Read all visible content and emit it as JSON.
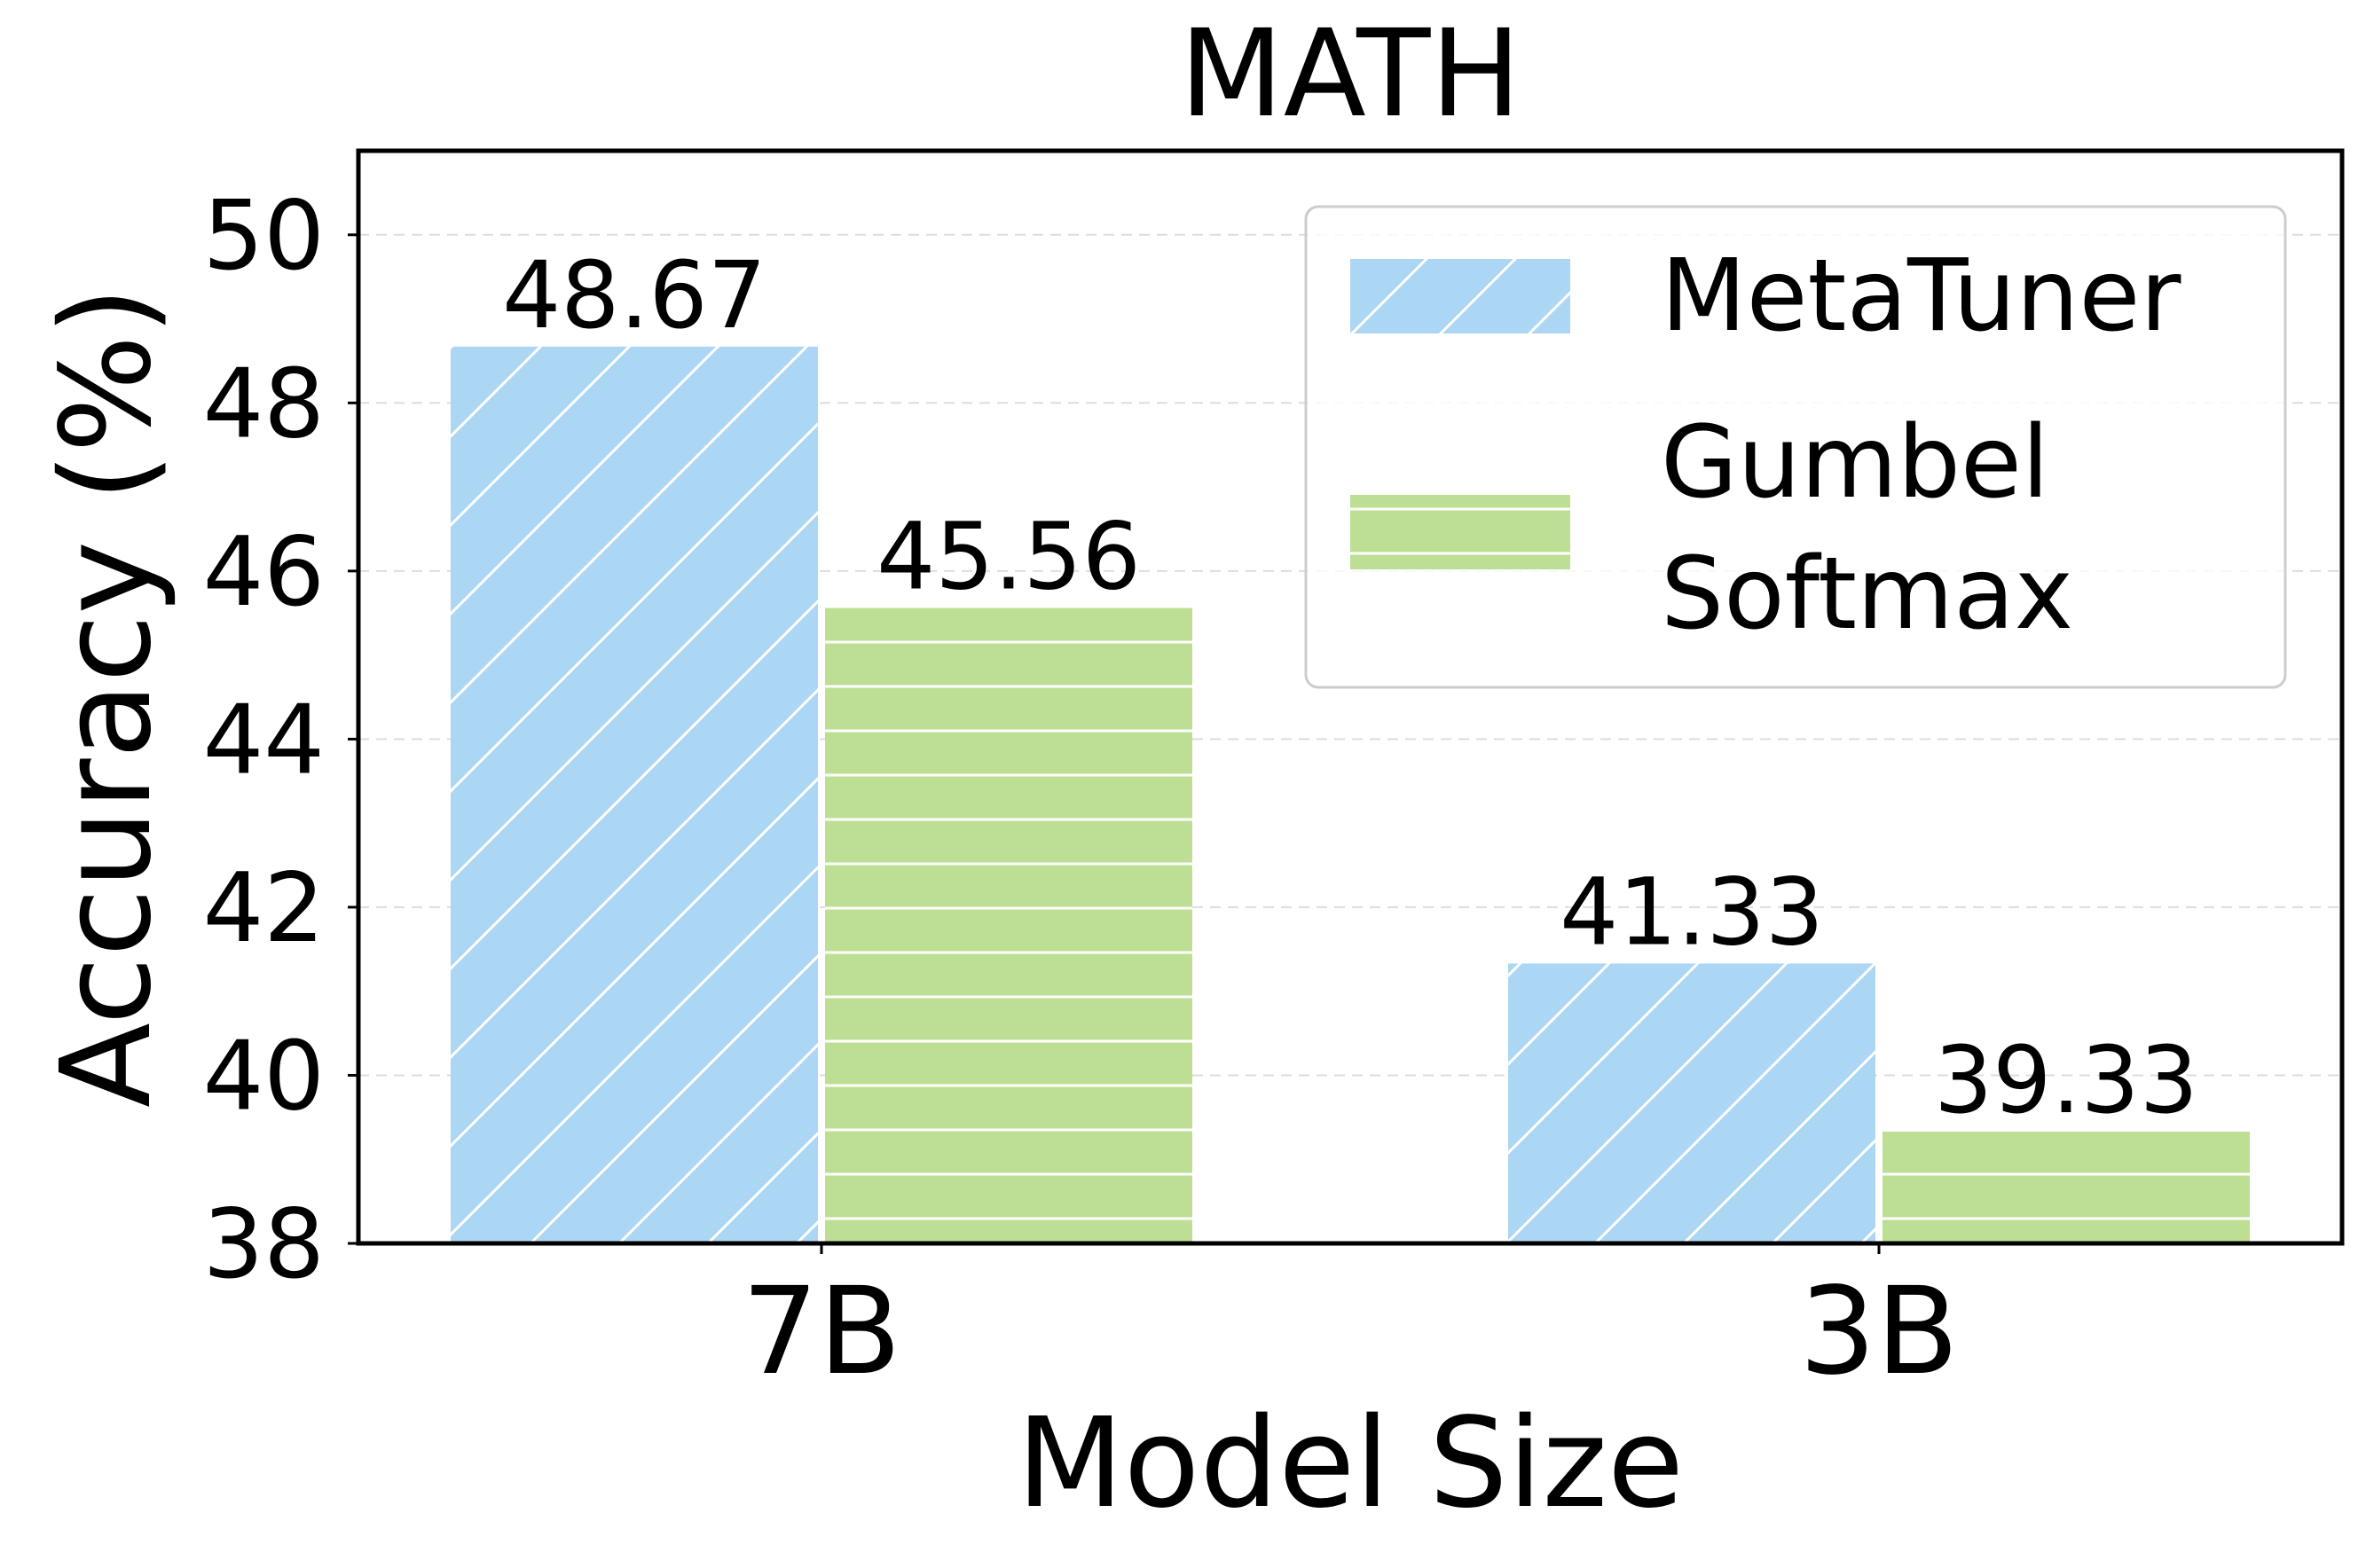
{
  "chart_data": {
    "type": "bar",
    "title": "MATH",
    "xlabel": "Model Size",
    "ylabel": "Accuracy (%)",
    "categories": [
      "7B",
      "3B"
    ],
    "ylim": [
      38,
      51
    ],
    "yticks": [
      38,
      40,
      42,
      44,
      46,
      48,
      50
    ],
    "grid": "horizontal dashed",
    "legend_position": "upper-right",
    "series": [
      {
        "name": "MetaTuner",
        "values": [
          48.67,
          41.33
        ],
        "labels": [
          "48.67",
          "41.33"
        ],
        "color": "#abd6f4",
        "hatch": "diagonal"
      },
      {
        "name": "Gumbel Softmax",
        "legend_lines": [
          "Gumbel",
          "Softmax"
        ],
        "values": [
          45.56,
          39.33
        ],
        "labels": [
          "45.56",
          "39.33"
        ],
        "color": "#bddf93",
        "hatch": "horizontal"
      }
    ]
  }
}
